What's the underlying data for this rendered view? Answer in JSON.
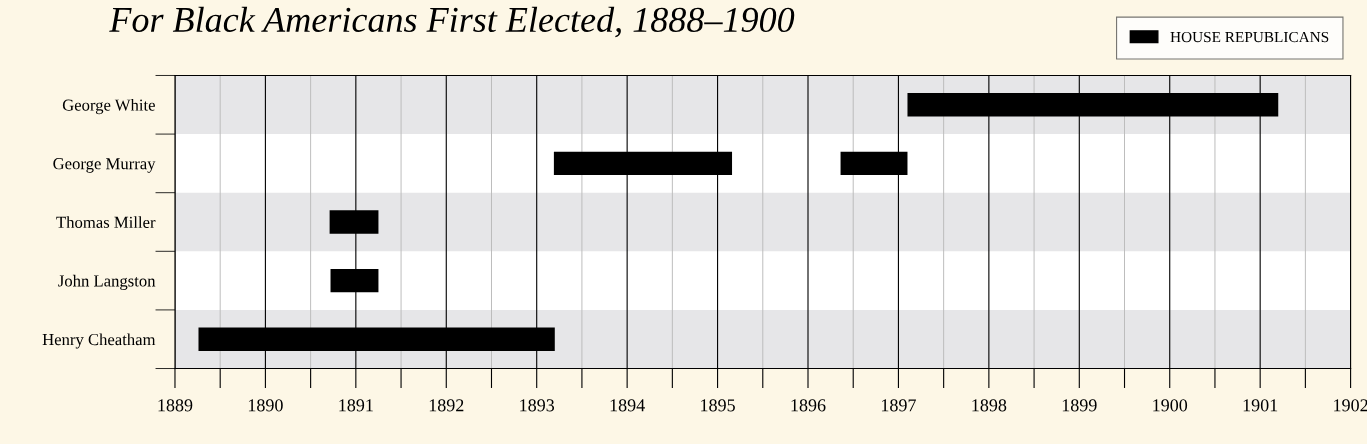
{
  "chart_data": {
    "type": "bar",
    "orientation": "horizontal",
    "title": "For Black Americans First Elected, 1888–1900",
    "categories": [
      "George White",
      "George Murray",
      "Thomas Miller",
      "John Langston",
      "Henry Cheatham"
    ],
    "series": [
      {
        "name": "HOUSE REPUBLICANS",
        "color": "#000000",
        "base": [
          1897.1,
          1893.19,
          1890.71,
          1890.72,
          1889.26
        ],
        "values": [
          4.1,
          1.97,
          0.54,
          0.53,
          3.94
        ]
      },
      {
        "color": "#000000",
        "base": [
          null,
          1896.36,
          null,
          null,
          null
        ],
        "values": [
          null,
          0.74,
          null,
          null,
          null
        ]
      }
    ],
    "xlim": [
      1889,
      1902
    ],
    "xticks": [
      1889,
      {
        "value": 1889.5,
        "label": null
      },
      1890,
      {
        "value": 1890.5,
        "label": null
      },
      1891,
      {
        "value": 1891.5,
        "label": null
      },
      1892,
      {
        "value": 1892.5,
        "label": null
      },
      1893,
      {
        "value": 1893.5,
        "label": null
      },
      1894,
      {
        "value": 1894.5,
        "label": null
      },
      1895,
      {
        "value": 1895.5,
        "label": null
      },
      1896,
      {
        "value": 1896.5,
        "label": null
      },
      1897,
      {
        "value": 1897.5,
        "label": null
      },
      1898,
      {
        "value": 1898.5,
        "label": null
      },
      1899,
      {
        "value": 1899.5,
        "label": null
      },
      1900,
      {
        "value": 1900.5,
        "label": null
      },
      1901,
      {
        "value": 1901.5,
        "label": null
      },
      1902
    ],
    "grid": "x",
    "legend": "top right"
  }
}
